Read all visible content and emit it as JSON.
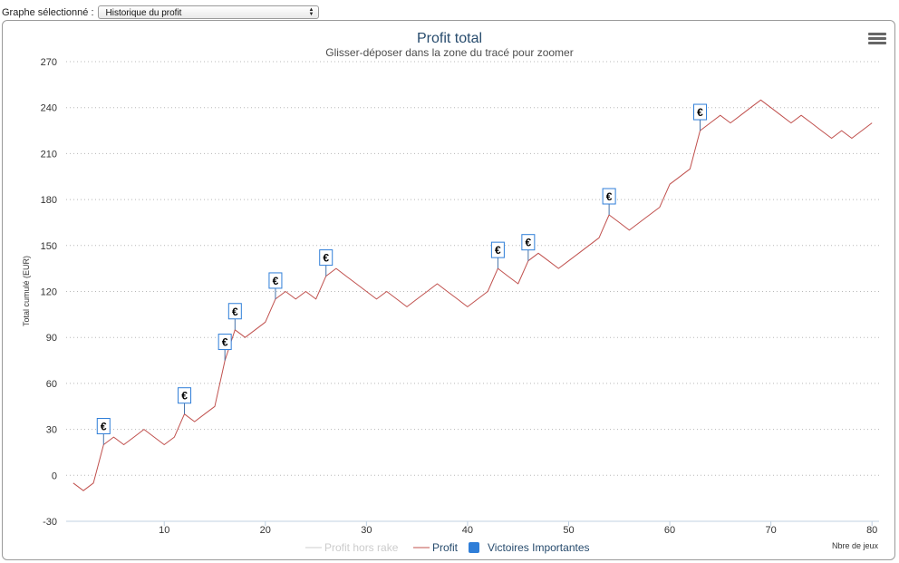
{
  "toolbar": {
    "graph_label": "Graphe sélectionné :",
    "graph_select_value": "Historique du profit"
  },
  "chart_data": {
    "type": "line",
    "title": "Profit total",
    "subtitle": "Glisser-déposer dans la zone du tracé pour zoomer",
    "xlabel": "Nbre de jeux",
    "ylabel": "Total cumulé (EUR)",
    "xlim": [
      0.3,
      80.7
    ],
    "ylim": [
      -30,
      270
    ],
    "xticks": [
      10,
      20,
      30,
      40,
      50,
      60,
      70,
      80
    ],
    "yticks": [
      -30,
      0,
      30,
      60,
      90,
      120,
      150,
      180,
      210,
      240,
      270
    ],
    "grid": "horizontal dotted",
    "legend_placement": "bottom-center",
    "colors": {
      "profit": "#c0504d",
      "hors_rake": "#cccccc",
      "flags": "#2f7ed8"
    },
    "series": [
      {
        "name": "Profit hors rake",
        "x": [],
        "y": []
      },
      {
        "name": "Profit",
        "x": [
          1,
          2,
          3,
          4,
          5,
          6,
          7,
          8,
          9,
          10,
          11,
          12,
          13,
          14,
          15,
          16,
          17,
          18,
          19,
          20,
          21,
          22,
          23,
          24,
          25,
          26,
          27,
          28,
          29,
          30,
          31,
          32,
          33,
          34,
          35,
          36,
          37,
          38,
          39,
          40,
          41,
          42,
          43,
          44,
          45,
          46,
          47,
          48,
          49,
          50,
          51,
          52,
          53,
          54,
          55,
          56,
          57,
          58,
          59,
          60,
          61,
          62,
          63,
          64,
          65,
          66,
          67,
          68,
          69,
          70,
          71,
          72,
          73,
          74,
          75,
          76,
          77,
          78,
          79,
          80
        ],
        "y": [
          -5,
          -10,
          -5,
          20,
          25,
          20,
          25,
          30,
          25,
          20,
          25,
          40,
          35,
          40,
          45,
          75,
          95,
          90,
          95,
          100,
          115,
          120,
          115,
          120,
          115,
          130,
          135,
          130,
          125,
          120,
          115,
          120,
          115,
          110,
          115,
          120,
          125,
          120,
          115,
          110,
          115,
          120,
          135,
          130,
          125,
          140,
          145,
          140,
          135,
          140,
          145,
          150,
          155,
          170,
          165,
          160,
          165,
          170,
          175,
          190,
          195,
          200,
          225,
          230,
          235,
          230,
          235,
          240,
          245,
          240,
          235,
          230,
          235,
          230,
          225,
          220,
          225,
          220,
          225,
          230
        ]
      },
      {
        "name": "Victoires Importantes",
        "type": "flags",
        "symbol": "€",
        "x": [
          4,
          12,
          16,
          17,
          21,
          26,
          43,
          46,
          54,
          63
        ]
      }
    ]
  }
}
